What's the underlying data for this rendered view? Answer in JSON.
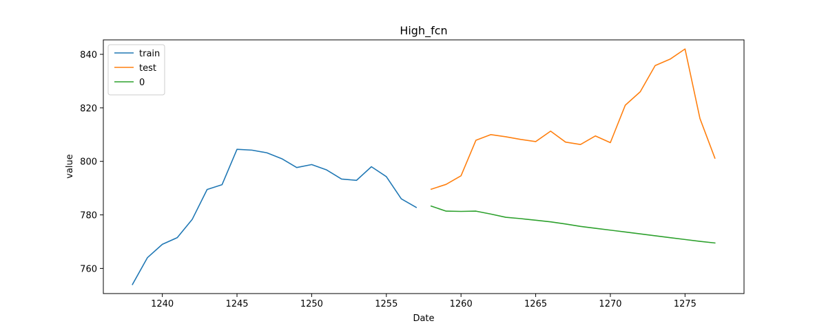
{
  "chart_data": {
    "type": "line",
    "title": "High_fcn",
    "xlabel": "Date",
    "ylabel": "value",
    "xlim": [
      1236.05,
      1278.95
    ],
    "ylim": [
      750.6,
      845.4
    ],
    "xticks": [
      1240,
      1245,
      1250,
      1255,
      1260,
      1265,
      1270,
      1275
    ],
    "yticks": [
      760,
      780,
      800,
      820,
      840
    ],
    "grid": false,
    "legend_position": "top-left",
    "series": [
      {
        "name": "train",
        "color": "#1f77b4",
        "x": [
          1238,
          1239,
          1240,
          1241,
          1242,
          1243,
          1244,
          1245,
          1246,
          1247,
          1248,
          1249,
          1250,
          1251,
          1252,
          1253,
          1254,
          1255,
          1256,
          1257
        ],
        "values": [
          754.0,
          764.0,
          769.0,
          771.5,
          778.3,
          789.5,
          791.3,
          804.5,
          804.2,
          803.2,
          801.0,
          797.7,
          798.8,
          796.8,
          793.4,
          792.9,
          798.0,
          794.3,
          786.0,
          782.8
        ]
      },
      {
        "name": "test",
        "color": "#ff7f0e",
        "x": [
          1258,
          1259,
          1260,
          1261,
          1262,
          1263,
          1264,
          1265,
          1266,
          1267,
          1268,
          1269,
          1270,
          1271,
          1272,
          1273,
          1274,
          1275,
          1276,
          1277
        ],
        "values": [
          789.6,
          791.4,
          794.6,
          807.9,
          810.0,
          809.2,
          808.2,
          807.4,
          811.3,
          807.2,
          806.3,
          809.5,
          807.0,
          821.0,
          826.0,
          835.8,
          838.2,
          842.0,
          816.0,
          801.2
        ]
      },
      {
        "name": "0",
        "color": "#2ca02c",
        "x": [
          1258,
          1259,
          1260,
          1261,
          1262,
          1263,
          1264,
          1265,
          1266,
          1267,
          1268,
          1269,
          1270,
          1271,
          1272,
          1273,
          1274,
          1275,
          1276,
          1277
        ],
        "values": [
          783.3,
          781.4,
          781.3,
          781.4,
          780.3,
          779.1,
          778.6,
          778.0,
          777.4,
          776.6,
          775.7,
          775.0,
          774.3,
          773.6,
          772.9,
          772.2,
          771.5,
          770.8,
          770.1,
          769.5
        ]
      }
    ]
  }
}
